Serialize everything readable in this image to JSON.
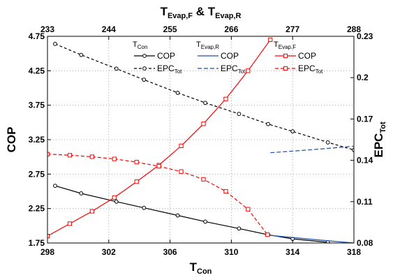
{
  "chart_data": {
    "type": "line",
    "title": "",
    "axes": {
      "bottom": {
        "label": "T",
        "label_sub": "Con",
        "range": [
          298,
          318
        ],
        "ticks": [
          298,
          302,
          306,
          310,
          314,
          318
        ],
        "tick_labels": [
          "298",
          "302",
          "306",
          "310",
          "314",
          "318"
        ]
      },
      "top": {
        "label_parts": [
          [
            "T",
            ""
          ],
          [
            "Evap,F",
            "sub"
          ],
          [
            " & T",
            ""
          ],
          [
            "Evap,R",
            "sub"
          ]
        ],
        "range": [
          233,
          288
        ],
        "ticks": [
          233,
          244,
          255,
          266,
          277,
          288
        ],
        "tick_labels": [
          "233",
          "244",
          "255",
          "266",
          "277",
          "288"
        ]
      },
      "left": {
        "label": "COP",
        "range": [
          1.75,
          4.75
        ],
        "ticks": [
          1.75,
          2.25,
          2.75,
          3.25,
          3.75,
          4.25,
          4.75
        ],
        "tick_labels": [
          "1.75",
          "2.25",
          "2.75",
          "3.25",
          "3.75",
          "4.25",
          "4.75"
        ]
      },
      "right": {
        "label": "EPC",
        "label_sub": "Tot",
        "range": [
          0.08,
          0.23
        ],
        "ticks": [
          0.08,
          0.11,
          0.14,
          0.17,
          0.2,
          0.23
        ],
        "tick_labels": [
          "0.08",
          "0.11",
          "0.14",
          "0.17",
          "0.2",
          "0.23"
        ]
      }
    },
    "grid": true,
    "legend": {
      "placement": "top",
      "groups": [
        {
          "header": "T",
          "header_sub": "Con",
          "entries": [
            {
              "label": "COP",
              "sub": "",
              "series": 0
            },
            {
              "label": "EPC",
              "sub": "Tot",
              "series": 1
            }
          ]
        },
        {
          "header": "T",
          "header_sub": "Evap,R",
          "entries": [
            {
              "label": "COP",
              "sub": "",
              "series": 2
            },
            {
              "label": "EPC",
              "sub": "Tot",
              "series": 3
            }
          ]
        },
        {
          "header": "T",
          "header_sub": "Evap,F",
          "entries": [
            {
              "label": "COP",
              "sub": "",
              "series": 4
            },
            {
              "label": "EPC",
              "sub": "Tot",
              "series": 5
            }
          ]
        }
      ]
    },
    "series": [
      {
        "name": "COP (T_Con)",
        "x_axis": "bottom",
        "y_axis": "left",
        "color": "#000000",
        "dash": "",
        "marker": "circle",
        "x": [
          298.5,
          300.2,
          302.5,
          304.3,
          306.5,
          308.3,
          310.5,
          312.4,
          314.0,
          316.3
        ],
        "y": [
          2.58,
          2.47,
          2.35,
          2.26,
          2.15,
          2.06,
          1.96,
          1.87,
          1.81,
          1.76
        ]
      },
      {
        "name": "EPC_Tot (T_Con)",
        "x_axis": "bottom",
        "y_axis": "right",
        "color": "#000000",
        "dash": "4,3",
        "marker": "circle",
        "x": [
          298.5,
          300.2,
          302.5,
          304.3,
          306.5,
          308.3,
          310.5,
          312.4,
          314.0,
          316.3,
          318.0
        ],
        "y": [
          0.2245,
          0.2165,
          0.2065,
          0.1985,
          0.189,
          0.1817,
          0.1737,
          0.1663,
          0.161,
          0.153,
          0.1475
        ]
      },
      {
        "name": "COP (T_Evap,R)",
        "x_axis": "top",
        "y_axis": "left",
        "color": "#1f4fa8",
        "dash": "",
        "marker": "none",
        "x": [
          273,
          277,
          281,
          285,
          288
        ],
        "y": [
          1.86,
          1.83,
          1.8,
          1.77,
          1.75
        ]
      },
      {
        "name": "EPC_Tot (T_Evap,R)",
        "x_axis": "top",
        "y_axis": "right",
        "color": "#1f4fa8",
        "dash": "6,3",
        "marker": "none",
        "x": [
          273,
          277,
          281,
          285,
          288
        ],
        "y": [
          0.1455,
          0.1467,
          0.1479,
          0.1492,
          0.1503
        ]
      },
      {
        "name": "COP (T_Evap,F)",
        "x_axis": "top",
        "y_axis": "left",
        "color": "#ff0000",
        "dash": "",
        "marker": "square",
        "x": [
          233,
          237,
          241,
          245,
          249,
          253,
          257,
          261,
          265,
          269,
          273
        ],
        "y": [
          1.85,
          2.03,
          2.21,
          2.41,
          2.64,
          2.88,
          3.16,
          3.48,
          3.84,
          4.25,
          4.7
        ]
      },
      {
        "name": "EPC_Tot (T_Evap,F)",
        "x_axis": "top",
        "y_axis": "right",
        "color": "#ff0000",
        "dash": "5,3",
        "marker": "square",
        "x": [
          233,
          237,
          241,
          245,
          249,
          253,
          257,
          261,
          265,
          269,
          272.5
        ],
        "y": [
          0.1445,
          0.1437,
          0.1426,
          0.141,
          0.1387,
          0.1357,
          0.1318,
          0.1262,
          0.1175,
          0.1045,
          0.086
        ]
      }
    ]
  }
}
